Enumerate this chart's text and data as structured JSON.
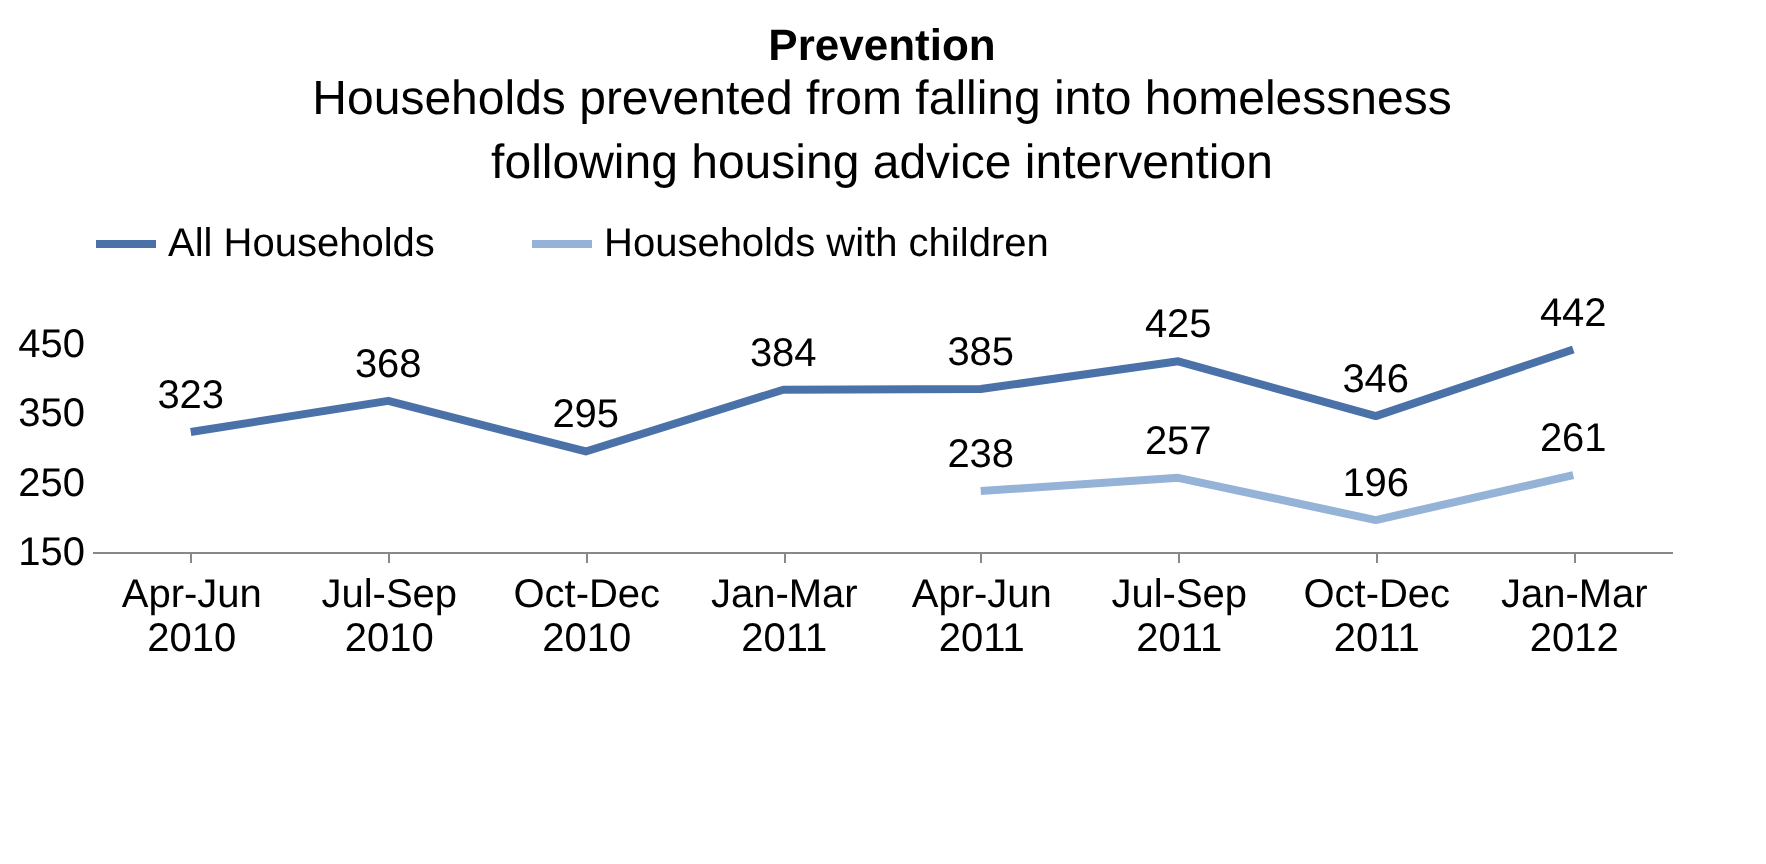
{
  "chart_data": {
    "type": "line",
    "title": "Prevention",
    "subtitle": "Households prevented from falling into homelessness following housing advice intervention",
    "categories": [
      "Apr-Jun 2010",
      "Jul-Sep 2010",
      "Oct-Dec 2010",
      "Jan-Mar 2011",
      "Apr-Jun 2011",
      "Jul-Sep 2011",
      "Oct-Dec 2011",
      "Jan-Mar 2012"
    ],
    "series": [
      {
        "name": "All Households",
        "color": "#4a72a8",
        "values": [
          323,
          368,
          295,
          384,
          385,
          425,
          346,
          442
        ]
      },
      {
        "name": "Households with children",
        "color": "#95b3d7",
        "values": [
          null,
          null,
          null,
          null,
          238,
          257,
          196,
          261
        ]
      }
    ],
    "ylim": [
      150,
      450
    ],
    "yticks": [
      150,
      250,
      350,
      450
    ],
    "grid": false,
    "legend": "top",
    "data_labels": true,
    "marker": "none",
    "line_style": "solid"
  }
}
